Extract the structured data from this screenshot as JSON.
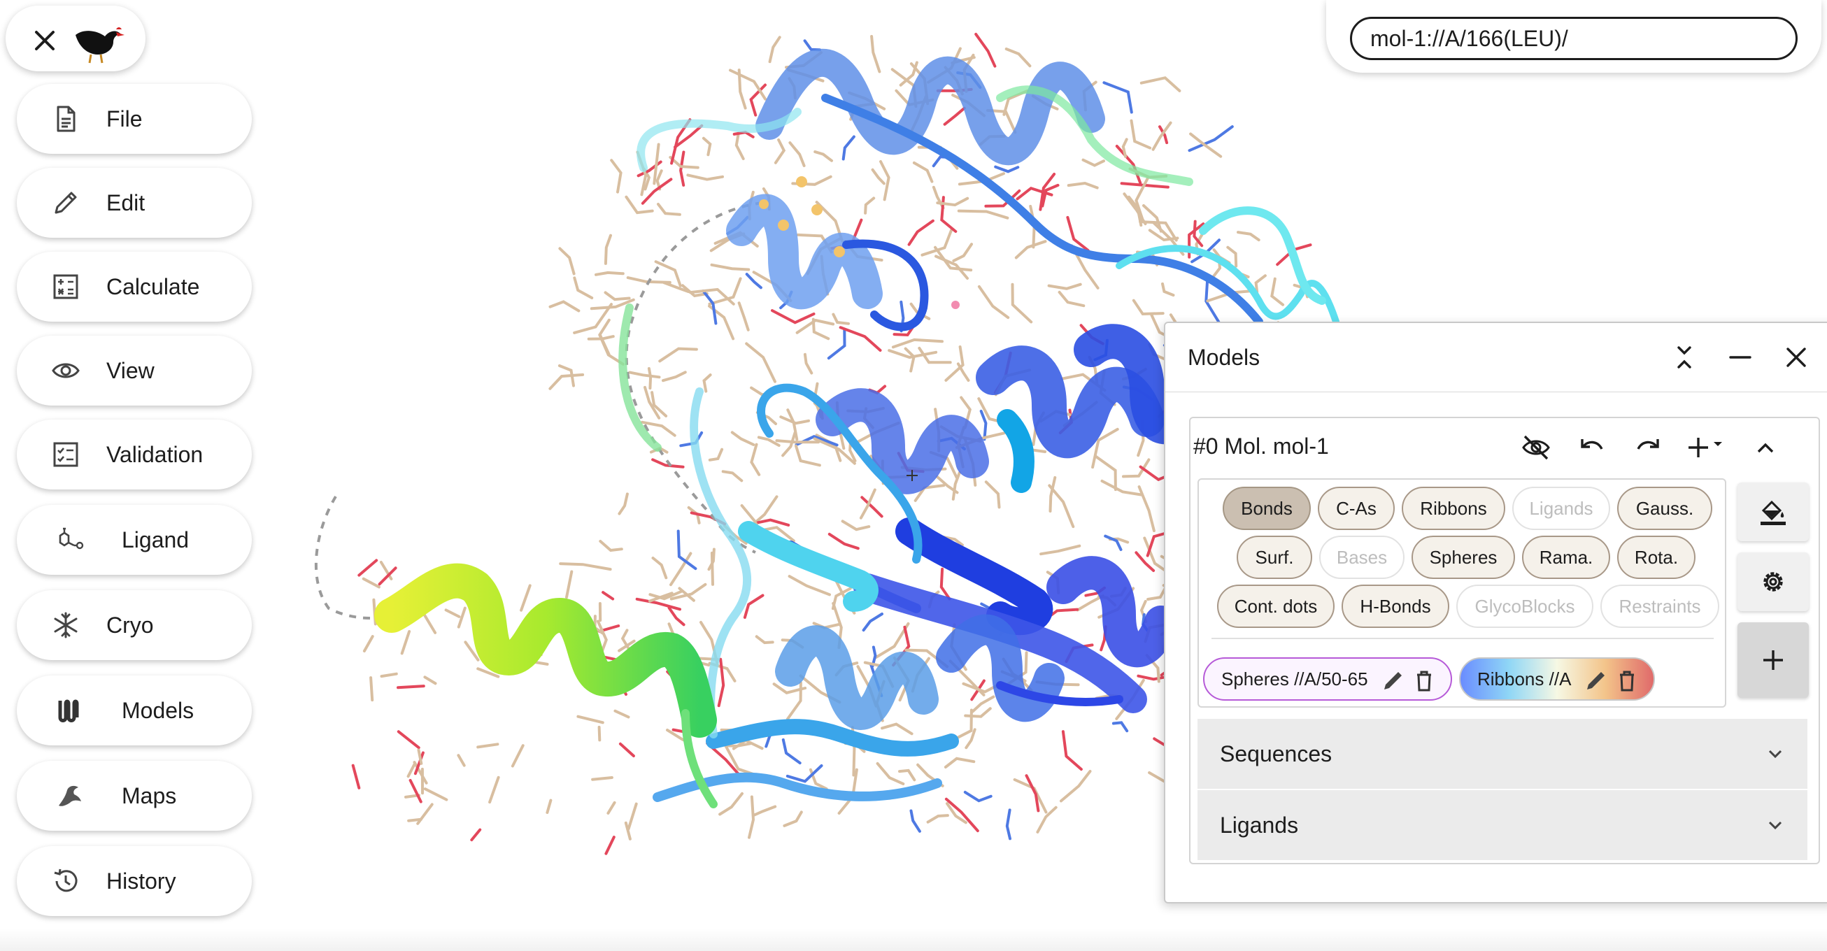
{
  "app": {
    "logo_icon": "moorhen-bird-logo",
    "close_icon": "close-icon"
  },
  "menu": [
    {
      "label": "File",
      "icon": "file-icon"
    },
    {
      "label": "Edit",
      "icon": "pencil-icon"
    },
    {
      "label": "Calculate",
      "icon": "calculator-icon"
    },
    {
      "label": "View",
      "icon": "eye-icon"
    },
    {
      "label": "Validation",
      "icon": "checklist-icon"
    },
    {
      "label": "Ligand",
      "icon": "molecule-icon"
    },
    {
      "label": "Cryo",
      "icon": "snowflake-icon"
    },
    {
      "label": "Models",
      "icon": "models-icon"
    },
    {
      "label": "Maps",
      "icon": "map-density-icon"
    },
    {
      "label": "History",
      "icon": "history-icon"
    }
  ],
  "address_bar": {
    "value": "mol-1://A/166(LEU)/"
  },
  "models_panel": {
    "title": "Models",
    "model": {
      "title": "#0 Mol. mol-1",
      "rep_buttons": [
        {
          "label": "Bonds",
          "state": "active"
        },
        {
          "label": "C-As",
          "state": "normal"
        },
        {
          "label": "Ribbons",
          "state": "normal"
        },
        {
          "label": "Ligands",
          "state": "disabled"
        },
        {
          "label": "Gauss.",
          "state": "normal"
        },
        {
          "label": "Surf.",
          "state": "normal"
        },
        {
          "label": "Bases",
          "state": "disabled"
        },
        {
          "label": "Spheres",
          "state": "normal"
        },
        {
          "label": "Rama.",
          "state": "normal"
        },
        {
          "label": "Rota.",
          "state": "normal"
        },
        {
          "label": "Cont. dots",
          "state": "normal"
        },
        {
          "label": "H-Bonds",
          "state": "normal"
        },
        {
          "label": "GlycoBlocks",
          "state": "disabled"
        },
        {
          "label": "Restraints",
          "state": "disabled"
        }
      ],
      "custom_reps": [
        {
          "label": "Spheres //A/50-65",
          "border_color": "#b65ad8"
        },
        {
          "label": "Ribbons //A",
          "style": "rainbow"
        }
      ]
    },
    "accordions": [
      {
        "label": "Sequences"
      },
      {
        "label": "Ligands"
      }
    ]
  },
  "colors": {
    "accent_chip_active": "#cbbfb1",
    "chip_border": "#a89888",
    "ribbon_blue": "#2f5fe0",
    "ribbon_cyan": "#5ee3f0",
    "ribbon_green": "#4fd33a",
    "ribbon_yellow": "#e2ef38",
    "stick_tan": "#d2b48c"
  }
}
